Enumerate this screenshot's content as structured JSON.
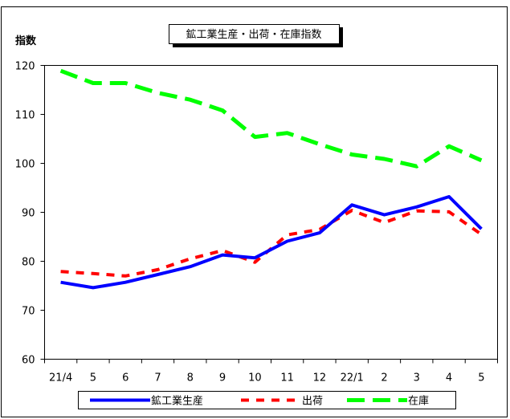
{
  "chart_data": {
    "type": "line",
    "title": "鉱工業生産・出荷・在庫指数",
    "ylabel": "指数",
    "xlabel": "",
    "ylim": [
      60,
      120
    ],
    "yticks": [
      60,
      70,
      80,
      90,
      100,
      110,
      120
    ],
    "grid": false,
    "legend_position": "bottom",
    "categories": [
      "21/4",
      "5",
      "6",
      "7",
      "8",
      "9",
      "10",
      "11",
      "12",
      "22/1",
      "2",
      "3",
      "4",
      "5"
    ],
    "series": [
      {
        "name": "鉱工業生産",
        "color": "#0000ff",
        "style": "solid",
        "values": [
          75.7,
          74.6,
          75.7,
          77.3,
          78.9,
          81.3,
          80.7,
          84.1,
          85.8,
          91.5,
          89.5,
          91.1,
          93.2,
          86.6
        ]
      },
      {
        "name": "出荷",
        "color": "#ff0000",
        "style": "dashed",
        "values": [
          77.9,
          77.5,
          77.0,
          78.3,
          80.5,
          82.2,
          79.8,
          85.4,
          86.5,
          90.4,
          87.9,
          90.3,
          90.1,
          85.5
        ]
      },
      {
        "name": "在庫",
        "color": "#00ff00",
        "style": "dashed",
        "values": [
          118.9,
          116.4,
          116.4,
          114.4,
          113.0,
          110.8,
          105.4,
          106.2,
          103.9,
          101.8,
          100.9,
          99.4,
          103.5,
          100.6
        ]
      }
    ]
  }
}
